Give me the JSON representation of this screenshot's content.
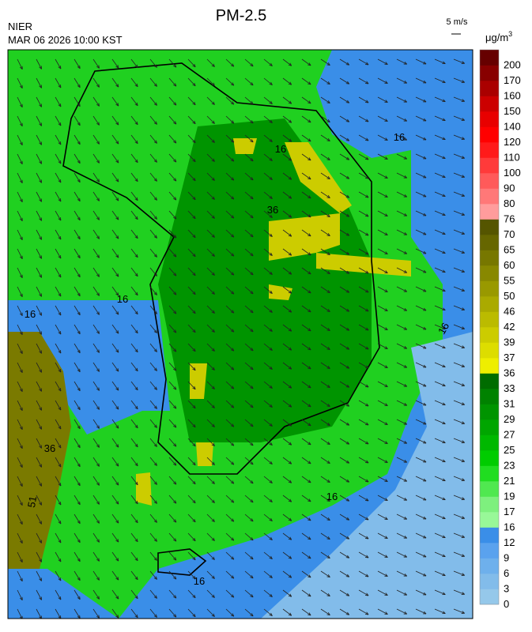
{
  "header": {
    "title": "PM-2.5",
    "agency": "NIER",
    "timestamp": "MAR 06 2026 10:00 KST"
  },
  "wind_legend": {
    "label": "5 m/s"
  },
  "colorbar": {
    "unit": "μg/m",
    "unit_sup": "3",
    "ticks": [
      0,
      3,
      6,
      9,
      12,
      16,
      17,
      19,
      21,
      23,
      25,
      27,
      29,
      31,
      33,
      36,
      37,
      39,
      42,
      46,
      50,
      55,
      60,
      65,
      70,
      76,
      80,
      90,
      100,
      110,
      120,
      140,
      150,
      160,
      170,
      200
    ],
    "colors": [
      "#95c8ea",
      "#82bcea",
      "#6eb0ec",
      "#5aa2ee",
      "#3a8ee8",
      "#98f898",
      "#7ef07e",
      "#50e850",
      "#20dd20",
      "#00cc00",
      "#00b800",
      "#00a600",
      "#009400",
      "#008200",
      "#006c00",
      "#eeee00",
      "#dddd00",
      "#cccc00",
      "#bbbb00",
      "#aaaa00",
      "#999900",
      "#888800",
      "#777700",
      "#666600",
      "#555500",
      "#ff9c9c",
      "#ff7878",
      "#ff5a5a",
      "#ff3a3a",
      "#ff1a1a",
      "#ff0000",
      "#e80000",
      "#cc0000",
      "#aa0000",
      "#880000",
      "#660000"
    ]
  },
  "map": {
    "contour_labels": [
      "16",
      "36",
      "16",
      "16",
      "16",
      "36",
      "51",
      "16",
      "16",
      "16"
    ]
  }
}
